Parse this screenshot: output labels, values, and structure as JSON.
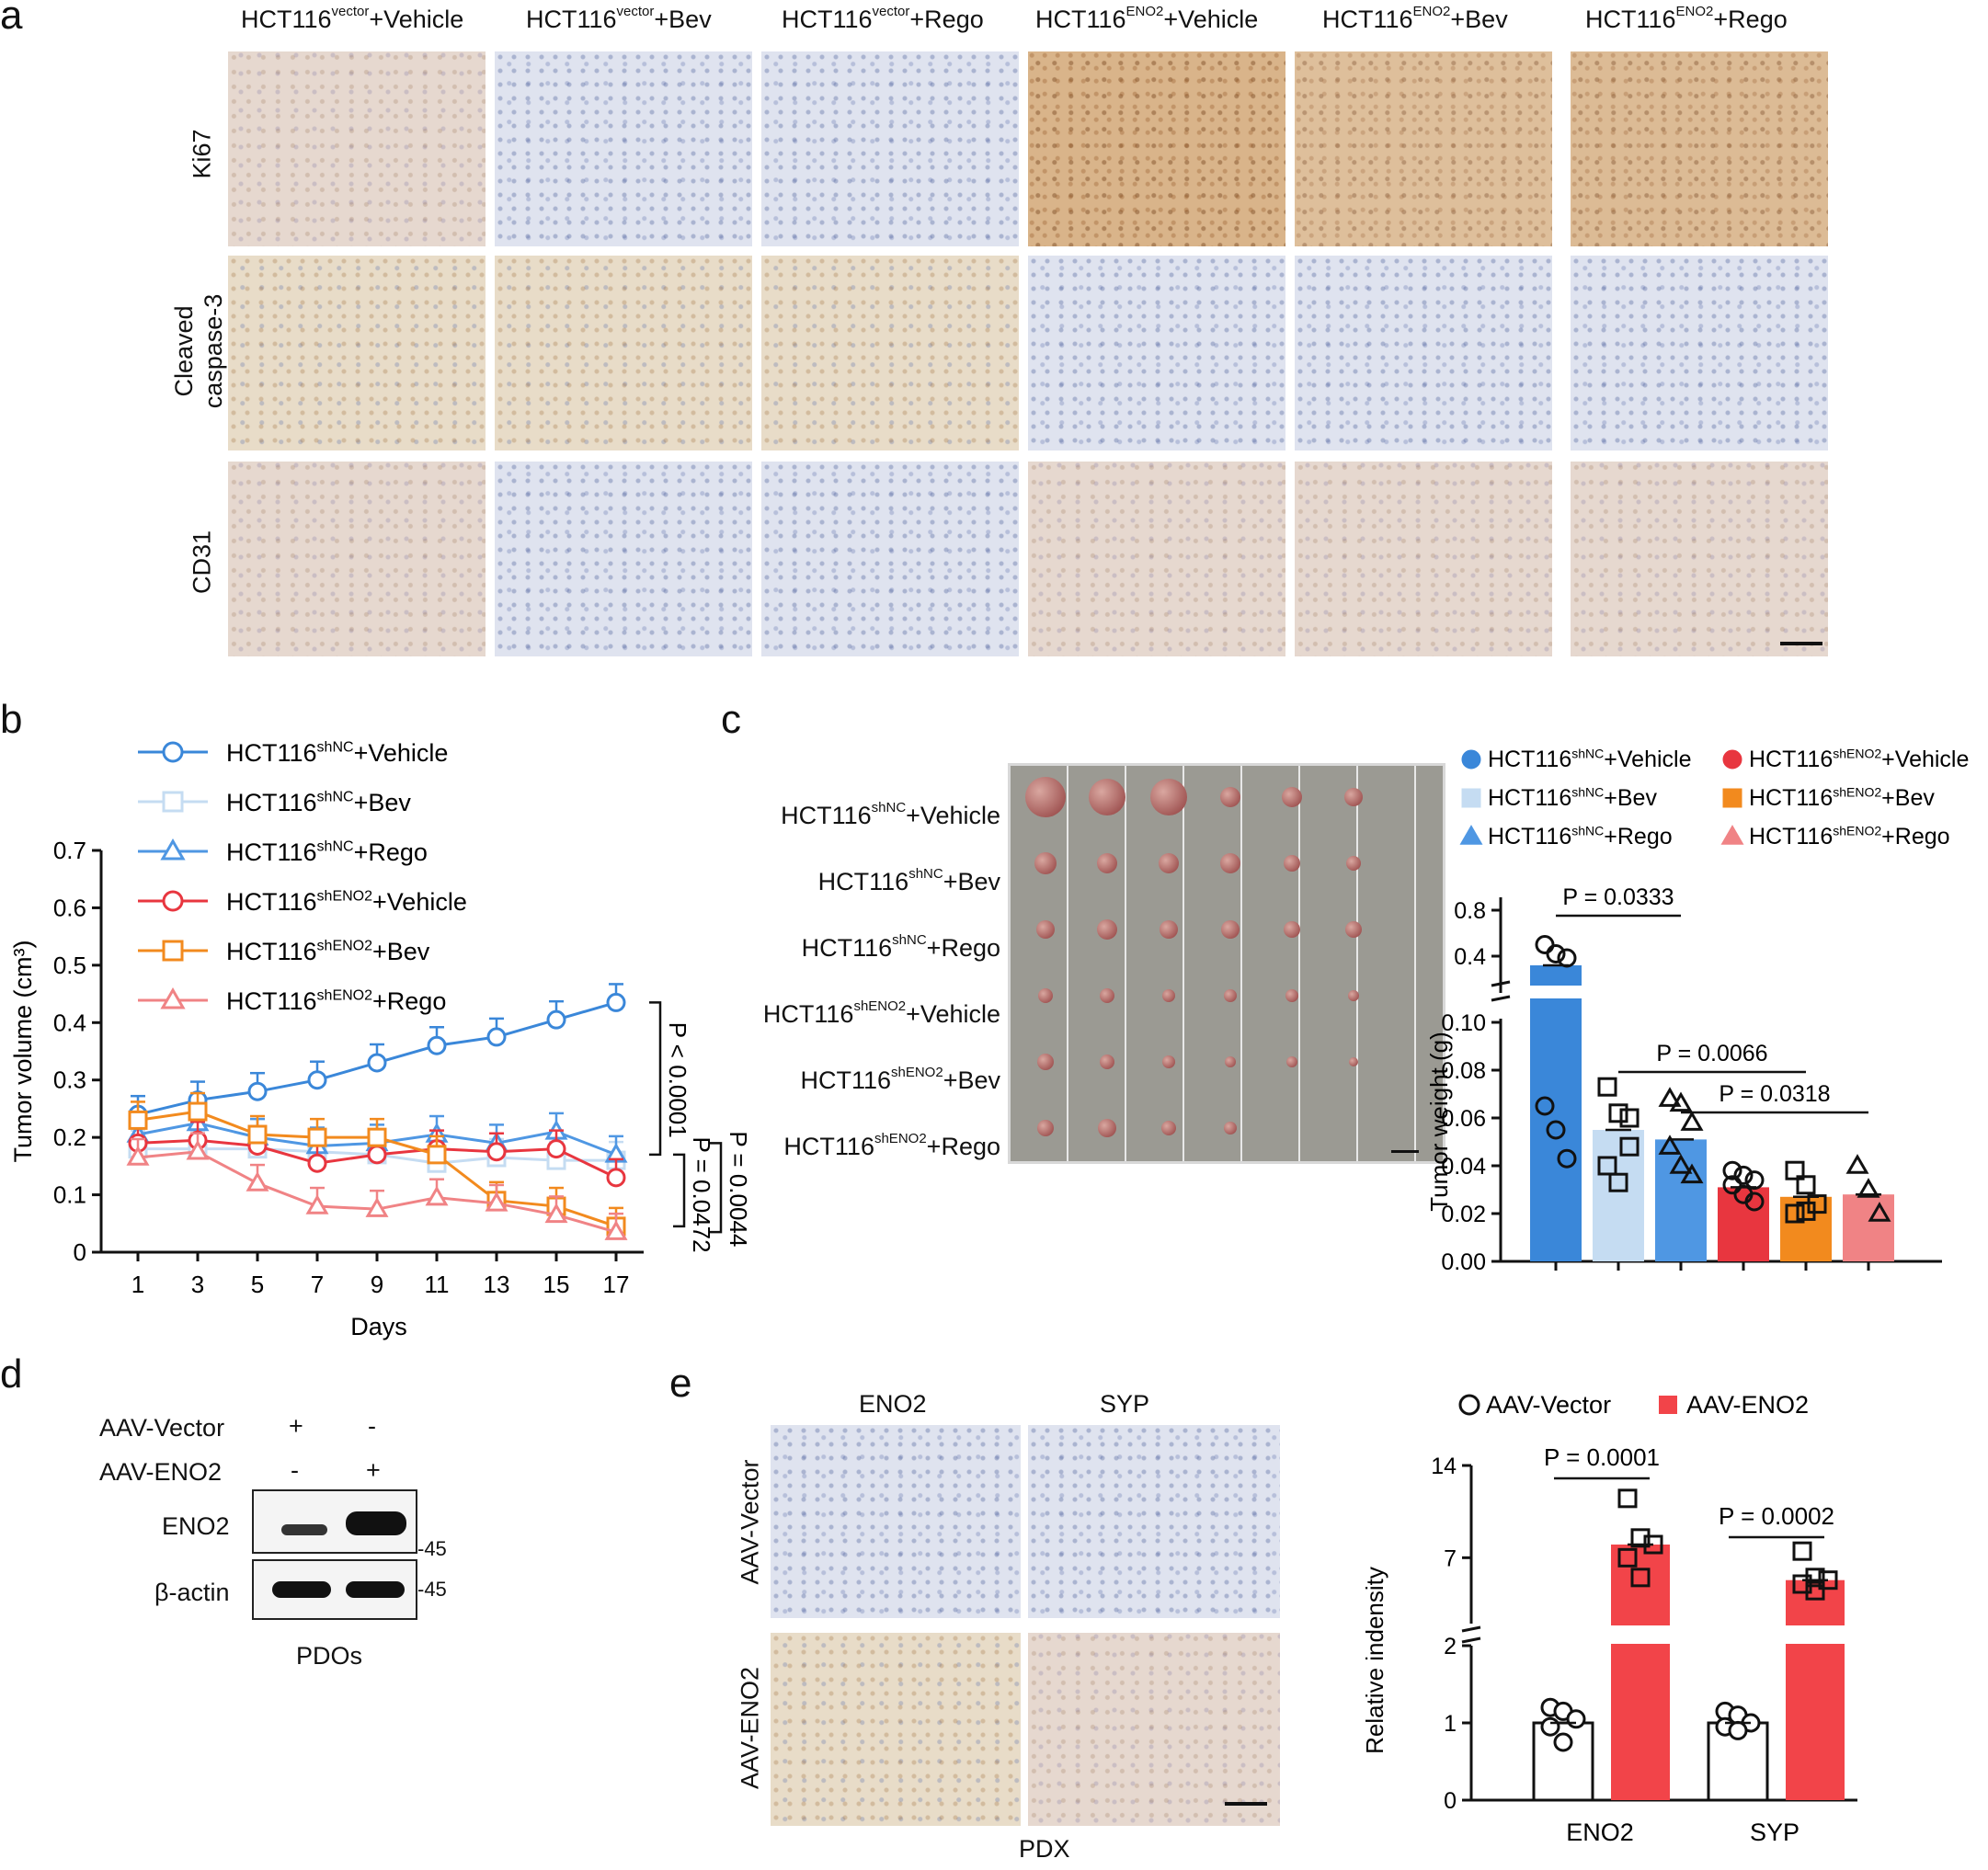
{
  "panels": {
    "a": "a",
    "b": "b",
    "c": "c",
    "d": "d",
    "e": "e"
  },
  "panel_a": {
    "columns": [
      {
        "base": "HCT116",
        "sup": "vector",
        "suffix": "+Vehicle"
      },
      {
        "base": "HCT116",
        "sup": "vector",
        "suffix": "+Bev"
      },
      {
        "base": "HCT116",
        "sup": "vector",
        "suffix": "+Rego"
      },
      {
        "base": "HCT116",
        "sup": "ENO2",
        "suffix": "+Vehicle"
      },
      {
        "base": "HCT116",
        "sup": "ENO2",
        "suffix": "+Bev"
      },
      {
        "base": "HCT116",
        "sup": "ENO2",
        "suffix": "+Rego"
      }
    ],
    "rows": [
      "Ki67",
      "Cleaved",
      "caspase-3",
      "CD31"
    ]
  },
  "panel_c_photo": {
    "rows": [
      {
        "base": "HCT116",
        "sup": "shNC",
        "suffix": "+Vehicle"
      },
      {
        "base": "HCT116",
        "sup": "shNC",
        "suffix": "+Bev"
      },
      {
        "base": "HCT116",
        "sup": "shNC",
        "suffix": "+Rego"
      },
      {
        "base": "HCT116",
        "sup": "shENO2",
        "suffix": "+Vehicle"
      },
      {
        "base": "HCT116",
        "sup": "shENO2",
        "suffix": "+Bev"
      },
      {
        "base": "HCT116",
        "sup": "shENO2",
        "suffix": "+Rego"
      }
    ]
  },
  "panel_d": {
    "row_labels": [
      "AAV-Vector",
      "AAV-ENO2"
    ],
    "signs": [
      [
        "+",
        "-"
      ],
      [
        "-",
        "+"
      ]
    ],
    "bands": [
      "ENO2",
      "β-actin"
    ],
    "marker": "-45",
    "caption": "PDOs"
  },
  "panel_e_images": {
    "columns": [
      "ENO2",
      "SYP"
    ],
    "rows": [
      "AAV-Vector",
      "AAV-ENO2"
    ],
    "caption": "PDX"
  },
  "colors": {
    "blue": "#3a87d9",
    "lightblue": "#c5dcf2",
    "midblue": "#4f97e3",
    "red": "#e8363f",
    "orange": "#f28a1e",
    "pink": "#f08385"
  },
  "chart_data": [
    {
      "type": "line",
      "xlabel": "Days",
      "ylabel": "Tumor volume (cm³)",
      "ylim": [
        0,
        0.7
      ],
      "yticks": [
        "0",
        "0.1",
        "0.2",
        "0.3",
        "0.4",
        "0.5",
        "0.6",
        "0.7"
      ],
      "x": [
        1,
        3,
        5,
        7,
        9,
        11,
        13,
        15,
        17
      ],
      "series": [
        {
          "name_base": "HCT116",
          "name_sup": "shNC",
          "name_suffix": "+Vehicle",
          "color": "#3a87d9",
          "marker": "circle",
          "values": [
            0.24,
            0.265,
            0.28,
            0.3,
            0.33,
            0.36,
            0.375,
            0.405,
            0.435
          ]
        },
        {
          "name_base": "HCT116",
          "name_sup": "shNC",
          "name_suffix": "+Bev",
          "color": "#c5dcf2",
          "marker": "square",
          "values": [
            0.18,
            0.18,
            0.18,
            0.175,
            0.17,
            0.155,
            0.165,
            0.16,
            0.16
          ]
        },
        {
          "name_base": "HCT116",
          "name_sup": "shNC",
          "name_suffix": "+Rego",
          "color": "#4f97e3",
          "marker": "triangle",
          "values": [
            0.205,
            0.225,
            0.2,
            0.185,
            0.19,
            0.205,
            0.19,
            0.21,
            0.17
          ]
        },
        {
          "name_base": "HCT116",
          "name_sup": "shENO2",
          "name_suffix": "+Vehicle",
          "color": "#e8363f",
          "marker": "circle",
          "values": [
            0.19,
            0.195,
            0.185,
            0.155,
            0.17,
            0.18,
            0.175,
            0.18,
            0.13
          ]
        },
        {
          "name_base": "HCT116",
          "name_sup": "shENO2",
          "name_suffix": "+Bev",
          "color": "#f28a1e",
          "marker": "square",
          "values": [
            0.23,
            0.245,
            0.205,
            0.2,
            0.2,
            0.17,
            0.09,
            0.08,
            0.045
          ]
        },
        {
          "name_base": "HCT116",
          "name_sup": "shENO2",
          "name_suffix": "+Rego",
          "color": "#f08385",
          "marker": "triangle",
          "values": [
            0.165,
            0.175,
            0.12,
            0.08,
            0.075,
            0.095,
            0.085,
            0.065,
            0.035
          ]
        }
      ],
      "annotations": [
        "P < 0.0001",
        "P = 0.0472",
        "P = 0.0044"
      ]
    },
    {
      "type": "bar",
      "ylabel": "Tumor weight (g)",
      "yticks_lower": [
        "0.00",
        "0.02",
        "0.04",
        "0.06",
        "0.08",
        "0.10"
      ],
      "yticks_upper": [
        "0.4",
        "0.8"
      ],
      "categories": [
        "HCT116shNC+Vehicle",
        "HCT116shNC+Bev",
        "HCT116shNC+Rego",
        "HCT116shENO2+Vehicle",
        "HCT116shENO2+Bev",
        "HCT116shENO2+Rego"
      ],
      "values": [
        0.3,
        0.055,
        0.051,
        0.031,
        0.027,
        0.028
      ],
      "points": [
        [
          0.5,
          0.42,
          0.38,
          0.065,
          0.055,
          0.043
        ],
        [
          0.073,
          0.062,
          0.048,
          0.04,
          0.033,
          0.06
        ],
        [
          0.068,
          0.066,
          0.058,
          0.048,
          0.04,
          0.036
        ],
        [
          0.038,
          0.036,
          0.034,
          0.032,
          0.028,
          0.025
        ],
        [
          0.038,
          0.032,
          0.024,
          0.02,
          0.021
        ],
        [
          0.04,
          0.03,
          0.02
        ]
      ],
      "legend": [
        {
          "base": "HCT116",
          "sup": "shNC",
          "suffix": "+Vehicle",
          "color": "#3a87d9",
          "marker": "circle"
        },
        {
          "base": "HCT116",
          "sup": "shENO2",
          "suffix": "+Vehicle",
          "color": "#e8363f",
          "marker": "circle"
        },
        {
          "base": "HCT116",
          "sup": "shNC",
          "suffix": "+Bev",
          "color": "#c5dcf2",
          "marker": "square"
        },
        {
          "base": "HCT116",
          "sup": "shENO2",
          "suffix": "+Bev",
          "color": "#f28a1e",
          "marker": "square"
        },
        {
          "base": "HCT116",
          "sup": "shNC",
          "suffix": "+Rego",
          "color": "#4f97e3",
          "marker": "triangle"
        },
        {
          "base": "HCT116",
          "sup": "shENO2",
          "suffix": "+Rego",
          "color": "#f08385",
          "marker": "triangle"
        }
      ],
      "annotations": [
        "P = 0.0333",
        "P = 0.0066",
        "P = 0.0318"
      ]
    },
    {
      "type": "bar",
      "ylabel": "Relative indensity",
      "yticks_lower": [
        "0",
        "1",
        "2"
      ],
      "yticks_upper": [
        "7",
        "14"
      ],
      "categories": [
        "ENO2",
        "SYP"
      ],
      "series": [
        {
          "name": "AAV-Vector",
          "color": "#ffffff",
          "values": [
            1.0,
            1.0
          ],
          "points": [
            [
              1.2,
              1.15,
              1.05,
              0.95,
              0.75
            ],
            [
              1.15,
              1.1,
              1.0,
              0.95,
              0.9
            ]
          ]
        },
        {
          "name": "AAV-ENO2",
          "color": "#f24449",
          "values": [
            8.0,
            5.3
          ],
          "points": [
            [
              11.5,
              8.5,
              8.0,
              7.0,
              5.5
            ],
            [
              7.5,
              5.5,
              5.3,
              5.0,
              4.5
            ]
          ]
        }
      ],
      "annotations": [
        "P = 0.0001",
        "P = 0.0002"
      ]
    }
  ]
}
